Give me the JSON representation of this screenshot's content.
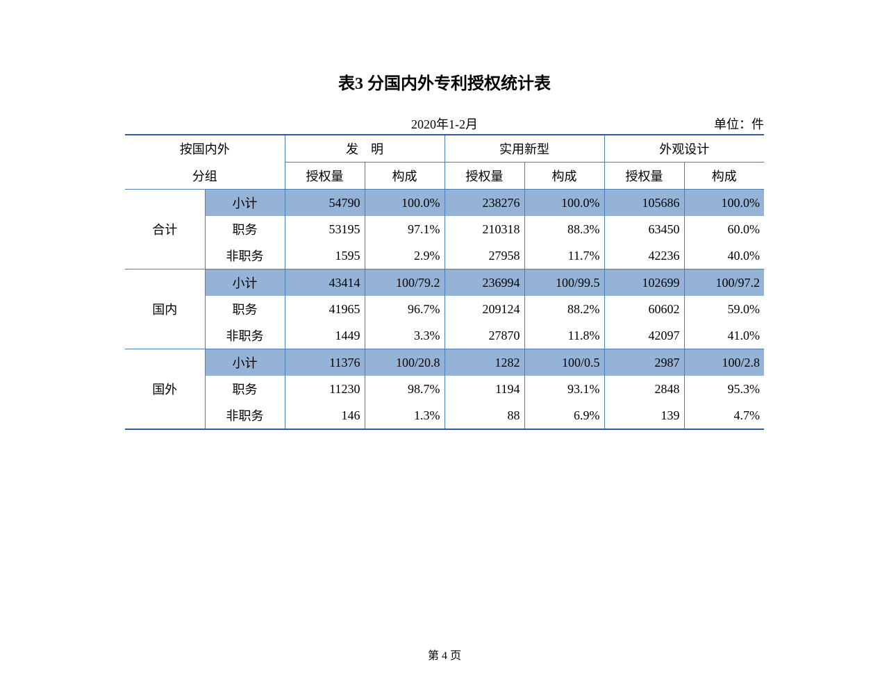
{
  "title": "表3  分国内外专利授权统计表",
  "period": "2020年1-2月",
  "unit_label": "单位：件",
  "footer": "第 4 页",
  "colors": {
    "border_dark": "#2a5caa",
    "border_light": "#4a7ebb",
    "highlight": "#95b3d7",
    "background": "#ffffff",
    "text": "#000000"
  },
  "header": {
    "group_label_line1": "按国内外",
    "group_label_line2": "分组",
    "categories": [
      "发　明",
      "实用新型",
      "外观设计"
    ],
    "subcols": [
      "授权量",
      "构成"
    ]
  },
  "groups": [
    {
      "name": "合计",
      "rows": [
        {
          "label": "小计",
          "hl": true,
          "cells": [
            "54790",
            "100.0%",
            "238276",
            "100.0%",
            "105686",
            "100.0%"
          ]
        },
        {
          "label": "职务",
          "hl": false,
          "cells": [
            "53195",
            "97.1%",
            "210318",
            "88.3%",
            "63450",
            "60.0%"
          ]
        },
        {
          "label": "非职务",
          "hl": false,
          "cells": [
            "1595",
            "2.9%",
            "27958",
            "11.7%",
            "42236",
            "40.0%"
          ]
        }
      ]
    },
    {
      "name": "国内",
      "rows": [
        {
          "label": "小计",
          "hl": true,
          "cells": [
            "43414",
            "100/79.2",
            "236994",
            "100/99.5",
            "102699",
            "100/97.2"
          ]
        },
        {
          "label": "职务",
          "hl": false,
          "cells": [
            "41965",
            "96.7%",
            "209124",
            "88.2%",
            "60602",
            "59.0%"
          ]
        },
        {
          "label": "非职务",
          "hl": false,
          "cells": [
            "1449",
            "3.3%",
            "27870",
            "11.8%",
            "42097",
            "41.0%"
          ]
        }
      ]
    },
    {
      "name": "国外",
      "rows": [
        {
          "label": "小计",
          "hl": true,
          "cells": [
            "11376",
            "100/20.8",
            "1282",
            "100/0.5",
            "2987",
            "100/2.8"
          ]
        },
        {
          "label": "职务",
          "hl": false,
          "cells": [
            "11230",
            "98.7%",
            "1194",
            "93.1%",
            "2848",
            "95.3%"
          ]
        },
        {
          "label": "非职务",
          "hl": false,
          "cells": [
            "146",
            "1.3%",
            "88",
            "6.9%",
            "139",
            "4.7%"
          ]
        }
      ]
    }
  ]
}
